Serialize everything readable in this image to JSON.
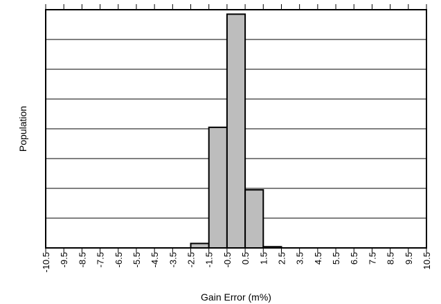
{
  "chart_data": {
    "type": "bar",
    "title": "",
    "xlabel": "Gain Error (m%)",
    "ylabel": "Population",
    "categories": [
      "-10.5",
      "-9.5",
      "-8.5",
      "-7.5",
      "-6.5",
      "-5.5",
      "-4.5",
      "-3.5",
      "-2.5",
      "-1.5",
      "-0.5",
      "0.5",
      "1.5",
      "2.5",
      "3.5",
      "4.5",
      "5.5",
      "6.5",
      "7.5",
      "8.5",
      "9.5",
      "10.5"
    ],
    "x_edges": [
      -10.5,
      -9.5,
      -8.5,
      -7.5,
      -6.5,
      -5.5,
      -4.5,
      -3.5,
      -2.5,
      -1.5,
      -0.5,
      0.5,
      1.5,
      2.5,
      3.5,
      4.5,
      5.5,
      6.5,
      7.5,
      8.5,
      9.5,
      10.5
    ],
    "bins": [
      {
        "from": -2.5,
        "to": -1.5,
        "value": 0.15
      },
      {
        "from": -1.5,
        "to": -0.5,
        "value": 4.05
      },
      {
        "from": -0.5,
        "to": 0.5,
        "value": 7.85
      },
      {
        "from": 0.5,
        "to": 1.5,
        "value": 1.95
      },
      {
        "from": 1.5,
        "to": 2.5,
        "value": 0.04
      }
    ],
    "ylim": [
      0,
      8
    ],
    "y_gridlines": [
      1,
      2,
      3,
      4,
      5,
      6,
      7
    ],
    "y_tick_labels": false,
    "grid": true,
    "bar_color": "#bdbdbd",
    "edge_color": "#000000",
    "background": "#ffffff"
  }
}
